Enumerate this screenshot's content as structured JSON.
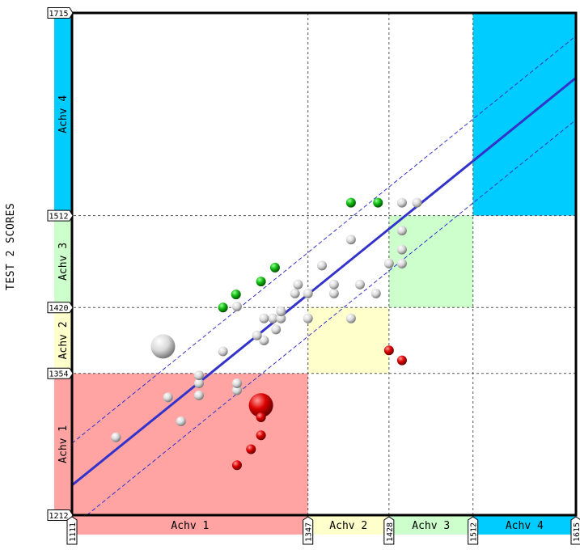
{
  "chart_data": {
    "type": "scatter",
    "ylabel": "TEST 2 SCORES",
    "xlabel": "",
    "xlim": [
      1111,
      1615
    ],
    "ylim": [
      1212,
      1715
    ],
    "x_cutpoints": [
      1111,
      1347,
      1428,
      1512,
      1615
    ],
    "y_cutpoints": [
      1212,
      1354,
      1420,
      1512,
      1715
    ],
    "x_bands": [
      "Achv 1",
      "Achv 2",
      "Achv 3",
      "Achv 4"
    ],
    "y_bands": [
      "Achv 1",
      "Achv 2",
      "Achv 3",
      "Achv 4"
    ],
    "band_colors": [
      "#ffa3a3",
      "#ffffcc",
      "#ccffcc",
      "#00ccff"
    ],
    "grid": true,
    "regression_line": {
      "x": [
        1111,
        1615
      ],
      "y": [
        1242,
        1650
      ],
      "color": "#3333cc"
    },
    "confidence_band_offset": 42,
    "series": [
      {
        "color": "#ffffff",
        "points": [
          {
            "x": 1155,
            "y": 1290,
            "size": 1
          },
          {
            "x": 1220,
            "y": 1306,
            "size": 1
          },
          {
            "x": 1207,
            "y": 1330,
            "size": 1
          },
          {
            "x": 1238,
            "y": 1332,
            "size": 1
          },
          {
            "x": 1276,
            "y": 1337,
            "size": 1
          },
          {
            "x": 1276,
            "y": 1344,
            "size": 1
          },
          {
            "x": 1238,
            "y": 1344,
            "size": 1
          },
          {
            "x": 1238,
            "y": 1352,
            "size": 1
          },
          {
            "x": 1202,
            "y": 1381,
            "size": 3
          },
          {
            "x": 1262,
            "y": 1376,
            "size": 1
          },
          {
            "x": 1303,
            "y": 1387,
            "size": 1
          },
          {
            "x": 1296,
            "y": 1392,
            "size": 1
          },
          {
            "x": 1315,
            "y": 1398,
            "size": 1
          },
          {
            "x": 1312,
            "y": 1409,
            "size": 1
          },
          {
            "x": 1303,
            "y": 1409,
            "size": 1
          },
          {
            "x": 1320,
            "y": 1409,
            "size": 1
          },
          {
            "x": 1347,
            "y": 1409,
            "size": 1
          },
          {
            "x": 1320,
            "y": 1416,
            "size": 1
          },
          {
            "x": 1262,
            "y": 1420,
            "size": 1
          },
          {
            "x": 1276,
            "y": 1421,
            "size": 1
          },
          {
            "x": 1334,
            "y": 1434,
            "size": 1
          },
          {
            "x": 1347,
            "y": 1434,
            "size": 1
          },
          {
            "x": 1373,
            "y": 1434,
            "size": 1
          },
          {
            "x": 1337,
            "y": 1443,
            "size": 1
          },
          {
            "x": 1373,
            "y": 1443,
            "size": 1
          },
          {
            "x": 1399,
            "y": 1443,
            "size": 1
          },
          {
            "x": 1415,
            "y": 1434,
            "size": 1
          },
          {
            "x": 1361,
            "y": 1462,
            "size": 1
          },
          {
            "x": 1390,
            "y": 1409,
            "size": 1
          },
          {
            "x": 1428,
            "y": 1464,
            "size": 1
          },
          {
            "x": 1441,
            "y": 1464,
            "size": 1
          },
          {
            "x": 1441,
            "y": 1478,
            "size": 1
          },
          {
            "x": 1390,
            "y": 1488,
            "size": 1
          },
          {
            "x": 1441,
            "y": 1497,
            "size": 1
          },
          {
            "x": 1441,
            "y": 1525,
            "size": 1
          },
          {
            "x": 1456,
            "y": 1525,
            "size": 1
          }
        ]
      },
      {
        "color": "#00cc00",
        "points": [
          {
            "x": 1262,
            "y": 1420,
            "size": 1
          },
          {
            "x": 1275,
            "y": 1433,
            "size": 1
          },
          {
            "x": 1300,
            "y": 1446,
            "size": 1
          },
          {
            "x": 1314,
            "y": 1460,
            "size": 1
          },
          {
            "x": 1390,
            "y": 1525,
            "size": 1
          },
          {
            "x": 1417,
            "y": 1525,
            "size": 1
          }
        ]
      },
      {
        "color": "#dd0000",
        "points": [
          {
            "x": 1300,
            "y": 1322,
            "size": 3
          },
          {
            "x": 1300,
            "y": 1310,
            "size": 1
          },
          {
            "x": 1300,
            "y": 1292,
            "size": 1
          },
          {
            "x": 1290,
            "y": 1278,
            "size": 1
          },
          {
            "x": 1276,
            "y": 1262,
            "size": 1
          },
          {
            "x": 1428,
            "y": 1377,
            "size": 1
          },
          {
            "x": 1441,
            "y": 1367,
            "size": 1
          }
        ]
      }
    ]
  }
}
